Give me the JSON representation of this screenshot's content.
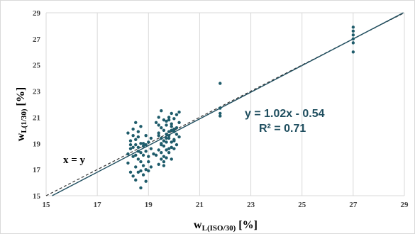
{
  "chart_data": {
    "type": "scatter",
    "title": "",
    "xlabel": {
      "main": "w",
      "sub": "L(ISO/30)",
      "unit": "[%]"
    },
    "ylabel": {
      "main": "w",
      "sub": "L(1/30)",
      "unit": "[%]"
    },
    "xlim": [
      15,
      29
    ],
    "ylim": [
      15,
      29
    ],
    "grid": "vertical",
    "x_ticks": [
      "15",
      "17",
      "19",
      "21",
      "23",
      "25",
      "27",
      "29"
    ],
    "y_ticks": [
      "15",
      "17",
      "19",
      "21",
      "23",
      "25",
      "27",
      "29"
    ],
    "annotations": {
      "identity_label": "x = y",
      "equation": "y = 1.02x - 0.54",
      "r_squared": "R² = 0.71"
    },
    "trendline": {
      "slope": 1.02,
      "intercept": -0.54
    },
    "identity_line": {
      "slope": 1,
      "intercept": 0
    },
    "colors": {
      "points": "#1f5c6b",
      "trend": "#1f4e5f",
      "identity": "#333333",
      "grid": "#d9d9d9"
    },
    "points": [
      [
        18.2,
        19.8
      ],
      [
        18.3,
        18.6
      ],
      [
        18.4,
        20.1
      ],
      [
        18.5,
        20.6
      ],
      [
        18.2,
        17.5
      ],
      [
        18.3,
        16.8
      ],
      [
        18.4,
        16.5
      ],
      [
        18.5,
        17.2
      ],
      [
        18.2,
        18.2
      ],
      [
        18.3,
        19.2
      ],
      [
        18.4,
        18.0
      ],
      [
        18.5,
        18.9
      ],
      [
        18.6,
        17.8
      ],
      [
        18.7,
        16.9
      ],
      [
        18.8,
        17.3
      ],
      [
        18.9,
        16.1
      ],
      [
        18.6,
        19.5
      ],
      [
        18.7,
        20.3
      ],
      [
        18.8,
        19.0
      ],
      [
        18.9,
        18.4
      ],
      [
        18.6,
        18.7
      ],
      [
        18.7,
        17.6
      ],
      [
        18.8,
        18.1
      ],
      [
        18.9,
        19.6
      ],
      [
        18.5,
        16.2
      ],
      [
        18.7,
        15.6
      ],
      [
        18.4,
        19.6
      ],
      [
        18.3,
        18.9
      ],
      [
        18.8,
        16.6
      ],
      [
        18.9,
        17.0
      ],
      [
        18.6,
        16.8
      ],
      [
        18.7,
        18.3
      ],
      [
        19.0,
        16.9
      ],
      [
        19.1,
        17.2
      ],
      [
        19.0,
        18.0
      ],
      [
        19.1,
        18.6
      ],
      [
        19.0,
        19.1
      ],
      [
        19.1,
        19.4
      ],
      [
        19.2,
        18.2
      ],
      [
        19.0,
        17.6
      ],
      [
        19.4,
        17.4
      ],
      [
        19.5,
        17.8
      ],
      [
        19.4,
        18.5
      ],
      [
        19.5,
        19.0
      ],
      [
        19.4,
        19.6
      ],
      [
        19.5,
        20.2
      ],
      [
        19.6,
        20.8
      ],
      [
        19.4,
        21.0
      ],
      [
        19.5,
        21.5
      ],
      [
        19.6,
        18.0
      ],
      [
        19.7,
        18.5
      ],
      [
        19.6,
        19.2
      ],
      [
        19.7,
        19.7
      ],
      [
        19.8,
        19.9
      ],
      [
        19.7,
        20.4
      ],
      [
        19.8,
        20.8
      ],
      [
        19.6,
        17.3
      ],
      [
        19.7,
        17.9
      ],
      [
        19.8,
        18.6
      ],
      [
        19.9,
        19.1
      ],
      [
        19.8,
        19.4
      ],
      [
        19.9,
        20.0
      ],
      [
        19.9,
        20.5
      ],
      [
        20.0,
        20.9
      ],
      [
        20.0,
        19.2
      ],
      [
        20.1,
        19.7
      ],
      [
        20.0,
        18.6
      ],
      [
        20.1,
        20.2
      ],
      [
        20.2,
        20.6
      ],
      [
        20.1,
        21.2
      ],
      [
        20.2,
        21.4
      ],
      [
        20.0,
        19.9
      ],
      [
        19.5,
        18.3
      ],
      [
        19.6,
        18.8
      ],
      [
        19.7,
        19.1
      ],
      [
        19.8,
        19.6
      ],
      [
        19.9,
        18.7
      ],
      [
        19.6,
        20.0
      ],
      [
        19.5,
        19.4
      ],
      [
        19.4,
        20.4
      ],
      [
        19.7,
        20.7
      ],
      [
        19.8,
        21.0
      ],
      [
        19.9,
        21.3
      ],
      [
        19.6,
        17.6
      ],
      [
        19.5,
        18.9
      ],
      [
        19.4,
        19.8
      ],
      [
        19.3,
        20.6
      ],
      [
        19.3,
        18.1
      ],
      [
        19.9,
        20.3
      ],
      [
        20.0,
        20.1
      ],
      [
        20.1,
        18.9
      ],
      [
        20.2,
        19.5
      ],
      [
        20.0,
        19.3
      ],
      [
        19.8,
        18.3
      ],
      [
        19.9,
        17.8
      ],
      [
        19.7,
        19.4
      ],
      [
        18.4,
        18.7
      ],
      [
        18.5,
        19.3
      ],
      [
        18.6,
        18.4
      ],
      [
        18.7,
        19.0
      ],
      [
        18.8,
        18.8
      ],
      [
        18.9,
        18.9
      ],
      [
        18.5,
        18.1
      ],
      [
        18.6,
        19.9
      ],
      [
        21.8,
        23.6
      ],
      [
        21.8,
        21.7
      ],
      [
        21.8,
        21.3
      ],
      [
        21.8,
        21.1
      ],
      [
        27.0,
        27.9
      ],
      [
        27.0,
        27.6
      ],
      [
        27.0,
        27.3
      ],
      [
        27.0,
        27.0
      ],
      [
        27.0,
        26.7
      ],
      [
        27.0,
        26.0
      ]
    ]
  }
}
